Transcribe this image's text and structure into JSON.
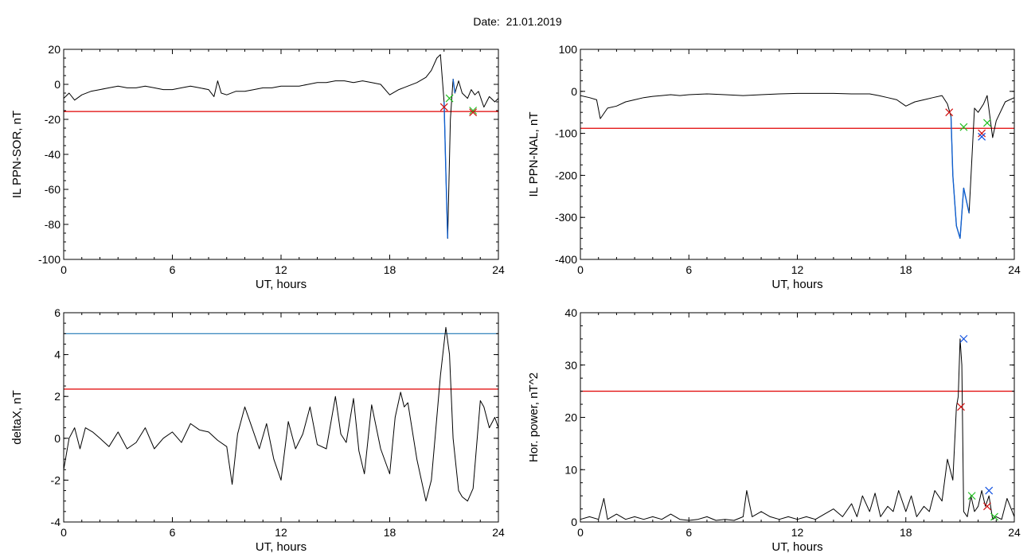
{
  "figure": {
    "title_label": "Date:",
    "title_value": "21.01.2019"
  },
  "colors": {
    "axis": "#000000",
    "data": "#000000",
    "threshold_red": "#e00000",
    "threshold_blue": "#1f77b4",
    "segment_blue": "#1060d0",
    "mark_red": "#d01010",
    "mark_green": "#20c020",
    "mark_blue": "#1050e0"
  },
  "chart_data": [
    {
      "type": "line",
      "ylabel": "IL PPN-SOR, nT",
      "xlabel": "UT, hours",
      "xlim": [
        0,
        24
      ],
      "ylim": [
        -100,
        20
      ],
      "xticks": [
        0,
        6,
        12,
        18,
        24
      ],
      "yticks": [
        -100,
        -80,
        -60,
        -40,
        -20,
        0,
        20
      ],
      "hlines": [
        {
          "y": -15.5,
          "color": "red"
        }
      ],
      "series": [
        {
          "x": [
            0,
            0.3,
            0.6,
            1,
            1.5,
            2,
            2.5,
            3,
            3.5,
            4,
            4.5,
            5,
            5.5,
            6,
            6.5,
            7,
            7.5,
            8,
            8.3,
            8.5,
            8.7,
            9,
            9.5,
            10,
            10.5,
            11,
            11.5,
            12,
            12.5,
            13,
            13.5,
            14,
            14.5,
            15,
            15.5,
            16,
            16.5,
            17,
            17.5,
            18,
            18.5,
            19,
            19.5,
            20,
            20.3,
            20.6,
            20.8,
            21,
            21.1,
            21.2,
            21.35,
            21.5,
            21.6,
            21.8,
            22,
            22.3,
            22.5,
            22.7,
            22.9,
            23.2,
            23.5,
            23.8,
            24
          ],
          "y": [
            -8,
            -5,
            -9,
            -6,
            -4,
            -3,
            -2,
            -1,
            -2,
            -2,
            -1,
            -2,
            -3,
            -3,
            -2,
            -1,
            -2,
            -3,
            -7,
            2,
            -5,
            -6,
            -4,
            -4,
            -3,
            -2,
            -2,
            -1,
            -1,
            -1,
            0,
            1,
            1,
            2,
            2,
            1,
            2,
            1,
            0,
            -6,
            -3,
            -1,
            1,
            4,
            8,
            15,
            17,
            -10,
            -50,
            -88,
            -20,
            3,
            -5,
            2,
            -5,
            -8,
            -3,
            -6,
            -4,
            -13,
            -7,
            -10,
            -8
          ]
        }
      ],
      "highlight_segments": [
        {
          "x": [
            21,
            21.3
          ],
          "color": "blue"
        },
        {
          "x": [
            21.5,
            21.7
          ],
          "color": "blue"
        }
      ],
      "markers": [
        {
          "x": 21.0,
          "y": -13,
          "color": "red"
        },
        {
          "x": 21.3,
          "y": -8,
          "color": "green"
        },
        {
          "x": 22.6,
          "y": -15,
          "color": "green"
        },
        {
          "x": 22.6,
          "y": -16,
          "color": "red"
        }
      ]
    },
    {
      "type": "line",
      "ylabel": "IL PPN-NAL, nT",
      "xlabel": "UT, hours",
      "xlim": [
        0,
        24
      ],
      "ylim": [
        -400,
        100
      ],
      "xticks": [
        0,
        6,
        12,
        18,
        24
      ],
      "yticks": [
        -400,
        -300,
        -200,
        -100,
        0,
        100
      ],
      "hlines": [
        {
          "y": -88,
          "color": "red"
        }
      ],
      "series": [
        {
          "x": [
            0,
            0.5,
            0.9,
            1.1,
            1.5,
            2,
            2.5,
            3,
            3.5,
            4,
            4.5,
            5,
            5.5,
            6,
            7,
            8,
            9,
            10,
            11,
            12,
            13,
            14,
            15,
            16,
            16.5,
            17,
            17.5,
            18,
            18.5,
            19,
            19.5,
            20,
            20.3,
            20.5,
            20.6,
            20.8,
            21,
            21.2,
            21.5,
            21.8,
            22,
            22.3,
            22.5,
            22.8,
            23,
            23.5,
            24
          ],
          "y": [
            -10,
            -15,
            -20,
            -65,
            -40,
            -35,
            -25,
            -20,
            -15,
            -12,
            -10,
            -8,
            -10,
            -8,
            -6,
            -8,
            -10,
            -8,
            -6,
            -5,
            -5,
            -5,
            -6,
            -6,
            -10,
            -15,
            -20,
            -35,
            -25,
            -20,
            -15,
            -10,
            -30,
            -60,
            -200,
            -320,
            -350,
            -230,
            -290,
            -40,
            -50,
            -30,
            -10,
            -110,
            -70,
            -25,
            -15
          ]
        }
      ],
      "highlight_segments": [
        {
          "x": [
            20.5,
            21.5
          ],
          "color": "blue"
        }
      ],
      "markers": [
        {
          "x": 20.4,
          "y": -50,
          "color": "red"
        },
        {
          "x": 21.2,
          "y": -85,
          "color": "green"
        },
        {
          "x": 22.2,
          "y": -100,
          "color": "red"
        },
        {
          "x": 22.2,
          "y": -108,
          "color": "blue"
        },
        {
          "x": 22.5,
          "y": -75,
          "color": "green"
        }
      ]
    },
    {
      "type": "line",
      "ylabel": "deltaX, nT",
      "xlabel": "UT, hours",
      "xlim": [
        0,
        24
      ],
      "ylim": [
        -4,
        6
      ],
      "xticks": [
        0,
        6,
        12,
        18,
        24
      ],
      "yticks": [
        -4,
        -2,
        0,
        2,
        4,
        6
      ],
      "hlines": [
        {
          "y": 5.0,
          "color": "blue"
        },
        {
          "y": 2.35,
          "color": "red"
        }
      ],
      "series": [
        {
          "x": [
            0,
            0.3,
            0.6,
            0.9,
            1.2,
            1.6,
            2,
            2.5,
            3,
            3.5,
            4,
            4.5,
            5,
            5.5,
            6,
            6.5,
            7,
            7.5,
            8,
            8.5,
            9,
            9.3,
            9.6,
            10,
            10.4,
            10.8,
            11.2,
            11.6,
            12,
            12.4,
            12.8,
            13.2,
            13.6,
            14,
            14.5,
            15,
            15.3,
            15.6,
            16,
            16.3,
            16.6,
            17,
            17.5,
            18,
            18.3,
            18.6,
            18.8,
            19,
            19.5,
            20,
            20.3,
            20.5,
            20.8,
            21.1,
            21.3,
            21.5,
            21.8,
            22,
            22.3,
            22.6,
            23,
            23.2,
            23.5,
            23.8,
            24
          ],
          "y": [
            -1.5,
            0,
            0.5,
            -0.5,
            0.5,
            0.3,
            0,
            -0.4,
            0.3,
            -0.5,
            -0.2,
            0.5,
            -0.5,
            0,
            0.3,
            -0.2,
            0.7,
            0.4,
            0.3,
            -0.1,
            -0.4,
            -2.2,
            0.2,
            1.5,
            0.5,
            -0.5,
            0.7,
            -1,
            -2,
            0.8,
            -0.5,
            0.2,
            1.5,
            -0.3,
            -0.5,
            2,
            0.2,
            -0.2,
            1.9,
            -0.6,
            -1.7,
            1.6,
            -0.5,
            -1.7,
            1,
            2.2,
            1.5,
            1.7,
            -1,
            -3,
            -2,
            0,
            3,
            5.3,
            4,
            0,
            -2.5,
            -2.8,
            -3,
            -2.4,
            1.8,
            1.5,
            0.5,
            1,
            0.5
          ]
        }
      ],
      "highlight_segments": [],
      "markers": []
    },
    {
      "type": "line",
      "ylabel": "Hor. power, nT^2",
      "xlabel": "UT, hours",
      "xlim": [
        0,
        24
      ],
      "ylim": [
        0,
        40
      ],
      "xticks": [
        0,
        6,
        12,
        18,
        24
      ],
      "yticks": [
        0,
        10,
        20,
        30,
        40
      ],
      "hlines": [
        {
          "y": 25,
          "color": "red"
        }
      ],
      "series": [
        {
          "x": [
            0,
            0.5,
            1,
            1.3,
            1.5,
            2,
            2.5,
            3,
            3.5,
            4,
            4.5,
            5,
            5.5,
            6,
            6.5,
            7,
            7.5,
            8,
            8.5,
            9,
            9.2,
            9.5,
            10,
            10.5,
            11,
            11.5,
            12,
            12.5,
            13,
            13.5,
            14,
            14.5,
            15,
            15.3,
            15.6,
            16,
            16.3,
            16.6,
            17,
            17.3,
            17.6,
            18,
            18.3,
            18.6,
            19,
            19.3,
            19.6,
            20,
            20.3,
            20.6,
            20.8,
            20.9,
            21,
            21.1,
            21.2,
            21.4,
            21.6,
            21.8,
            22,
            22.2,
            22.4,
            22.6,
            22.8,
            23,
            23.3,
            23.6,
            24
          ],
          "y": [
            0.5,
            1,
            0.5,
            4.5,
            0.5,
            1.5,
            0.5,
            1,
            0.5,
            1,
            0.5,
            1.5,
            0.5,
            0.3,
            0.5,
            1,
            0.3,
            0.5,
            0.3,
            1,
            6,
            1,
            2,
            1,
            0.5,
            1,
            0.5,
            1,
            0.5,
            1.5,
            2.5,
            1,
            3.5,
            1,
            5,
            2,
            5.5,
            1,
            3,
            2,
            6,
            2,
            5,
            1,
            3,
            2,
            6,
            4,
            12,
            8,
            22,
            24,
            35,
            30,
            2,
            1,
            5,
            2,
            3,
            6,
            3,
            5,
            0.5,
            1,
            0.5,
            4.5,
            1
          ]
        }
      ],
      "highlight_segments": [],
      "markers": [
        {
          "x": 21.05,
          "y": 22,
          "color": "red"
        },
        {
          "x": 21.2,
          "y": 35,
          "color": "blue"
        },
        {
          "x": 21.65,
          "y": 5,
          "color": "green"
        },
        {
          "x": 22.5,
          "y": 3,
          "color": "red"
        },
        {
          "x": 22.6,
          "y": 6,
          "color": "blue"
        },
        {
          "x": 22.9,
          "y": 1,
          "color": "green"
        }
      ]
    }
  ]
}
